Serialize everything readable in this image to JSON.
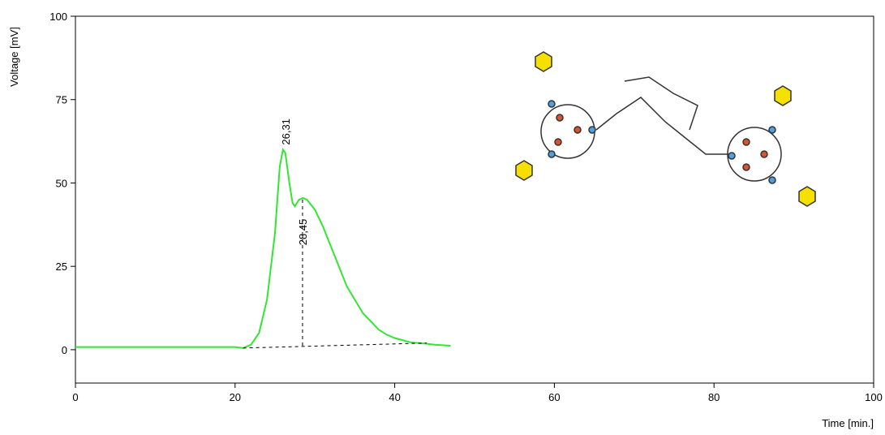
{
  "chart_data": {
    "type": "line",
    "xlabel": "Time [min.]",
    "ylabel": "Voltage [mV]",
    "x": [
      0,
      20,
      21,
      22,
      23,
      24,
      25,
      25.6,
      26,
      26.3,
      26.8,
      27.2,
      27.5,
      28,
      28.5,
      29,
      30,
      31,
      32,
      33,
      34,
      35,
      36,
      37,
      38,
      39,
      40,
      42,
      44,
      45,
      47
    ],
    "values": [
      0.8,
      0.8,
      0.5,
      1.5,
      5,
      15,
      35,
      55,
      60,
      59,
      50,
      44,
      43,
      45,
      45.5,
      45,
      42,
      37,
      31,
      25,
      19,
      15,
      11,
      8.5,
      6,
      4.5,
      3.5,
      2.2,
      1.8,
      1.5,
      1.2
    ],
    "color": "#33e633",
    "baseline": {
      "x": [
        21,
        44
      ],
      "values": [
        0.5,
        2
      ]
    },
    "peaks": {
      "x": [
        26.31,
        28.45
      ],
      "labels": [
        "26,31",
        "28,45"
      ],
      "values": [
        60,
        45
      ]
    },
    "xlim": [
      0,
      100
    ],
    "xticks": [
      0,
      20,
      40,
      60,
      80,
      100
    ],
    "ylim": [
      -10,
      100
    ],
    "yticks": [
      0,
      25,
      50,
      75,
      100
    ]
  }
}
